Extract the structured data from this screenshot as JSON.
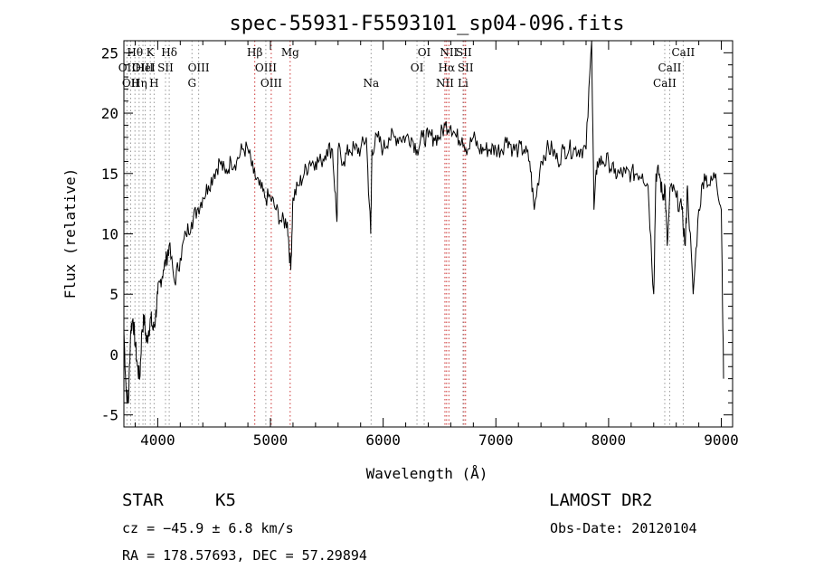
{
  "chart_data": {
    "type": "line",
    "title": "spec-55931-F5593101_sp04-096.fits",
    "xlabel": "Wavelength (Å)",
    "ylabel": "Flux (relative)",
    "xlim": [
      3700,
      9100
    ],
    "ylim": [
      -6,
      26
    ],
    "xticks": [
      4000,
      5000,
      6000,
      7000,
      8000,
      9000
    ],
    "yticks": [
      -5,
      0,
      5,
      10,
      15,
      20,
      25
    ],
    "grid": false,
    "spectrum": {
      "x": [
        3700,
        3720,
        3740,
        3760,
        3780,
        3800,
        3820,
        3840,
        3860,
        3880,
        3900,
        3920,
        3940,
        3960,
        3980,
        4000,
        4020,
        4050,
        4080,
        4100,
        4150,
        4200,
        4250,
        4300,
        4350,
        4400,
        4450,
        4500,
        4550,
        4600,
        4650,
        4700,
        4750,
        4800,
        4850,
        4900,
        4950,
        5000,
        5050,
        5100,
        5150,
        5180,
        5200,
        5250,
        5300,
        5350,
        5400,
        5450,
        5500,
        5550,
        5590,
        5600,
        5650,
        5700,
        5750,
        5800,
        5850,
        5890,
        5900,
        5950,
        6000,
        6050,
        6100,
        6150,
        6200,
        6250,
        6300,
        6350,
        6400,
        6450,
        6500,
        6550,
        6600,
        6650,
        6700,
        6750,
        6800,
        6850,
        6900,
        6950,
        7000,
        7050,
        7100,
        7150,
        7200,
        7250,
        7300,
        7340,
        7400,
        7450,
        7500,
        7550,
        7600,
        7650,
        7700,
        7750,
        7800,
        7850,
        7870,
        7900,
        7950,
        8000,
        8050,
        8100,
        8150,
        8200,
        8250,
        8300,
        8350,
        8400,
        8420,
        8450,
        8480,
        8500,
        8520,
        8550,
        8600,
        8650,
        8680,
        8700,
        8750,
        8800,
        8850,
        8900,
        8950,
        9000,
        9020
      ],
      "y": [
        2,
        -3,
        -4,
        2,
        3,
        1,
        -1,
        -2,
        2,
        3,
        1,
        2,
        3,
        2,
        3,
        5,
        6,
        7,
        8,
        9,
        6,
        8,
        10,
        11,
        12,
        13,
        14,
        15,
        16,
        15,
        16,
        16,
        17,
        17,
        15,
        14,
        13,
        13,
        12,
        11,
        11,
        7,
        13,
        14,
        15,
        16,
        16,
        16,
        17,
        17,
        11,
        17,
        16,
        17,
        17,
        17,
        18,
        10,
        17,
        18,
        17,
        18,
        18,
        18,
        18,
        18,
        17,
        18,
        18,
        18,
        18,
        19,
        19,
        18,
        18,
        17,
        18,
        17,
        17,
        17,
        17,
        17,
        18,
        17,
        17,
        17,
        16,
        12,
        16,
        17,
        17,
        16,
        17,
        17,
        17,
        17,
        17,
        26,
        12,
        16,
        16,
        16,
        15,
        15,
        15,
        15,
        15,
        15,
        14,
        5,
        15,
        15,
        13,
        14,
        9,
        14,
        13,
        12,
        9,
        14,
        5,
        12,
        15,
        14,
        15,
        12,
        -2
      ],
      "color": "#000000"
    },
    "lines": [
      {
        "label": "Hθ",
        "x": 3798,
        "row": 0,
        "color": "#999999"
      },
      {
        "label": "OII",
        "x": 3727,
        "row": 1,
        "color": "#999999"
      },
      {
        "label": "OIII",
        "x": 3869,
        "row": 1,
        "color": "#999999"
      },
      {
        "label": "HeI",
        "x": 3889,
        "row": 1,
        "color": "#999999"
      },
      {
        "label": "Hη",
        "x": 3835,
        "row": 2,
        "color": "#999999"
      },
      {
        "label": "OII",
        "x": 3760,
        "row": 2,
        "color": "#999999"
      },
      {
        "label": "K",
        "x": 3934,
        "row": 0,
        "color": "#999999"
      },
      {
        "label": "H",
        "x": 3968,
        "row": 2,
        "color": "#999999"
      },
      {
        "label": "SII",
        "x": 4069,
        "row": 1,
        "color": "#999999"
      },
      {
        "label": "Hδ",
        "x": 4102,
        "row": 0,
        "color": "#999999"
      },
      {
        "label": "G",
        "x": 4304,
        "row": 2,
        "color": "#999999"
      },
      {
        "label": "OIII",
        "x": 4363,
        "row": 1,
        "color": "#999999"
      },
      {
        "label": "Hβ",
        "x": 4861,
        "row": 0,
        "color": "#cc3333"
      },
      {
        "label": "OIII",
        "x": 4959,
        "row": 1,
        "color": "#999999"
      },
      {
        "label": "OIII",
        "x": 5007,
        "row": 2,
        "color": "#cc3333"
      },
      {
        "label": "Mg",
        "x": 5175,
        "row": 0,
        "color": "#cc3333"
      },
      {
        "label": "Na",
        "x": 5893,
        "row": 2,
        "color": "#999999"
      },
      {
        "label": "OI",
        "x": 6300,
        "row": 1,
        "color": "#999999"
      },
      {
        "label": "OI",
        "x": 6364,
        "row": 0,
        "color": "#999999"
      },
      {
        "label": "NII",
        "x": 6548,
        "row": 2,
        "color": "#cc3333"
      },
      {
        "label": "NII",
        "x": 6583,
        "row": 0,
        "color": "#cc3333"
      },
      {
        "label": "Hα",
        "x": 6563,
        "row": 1,
        "color": "#cc3333"
      },
      {
        "label": "SII",
        "x": 6716,
        "row": 0,
        "color": "#cc3333"
      },
      {
        "label": "SII",
        "x": 6731,
        "row": 1,
        "color": "#cc3333"
      },
      {
        "label": "Li",
        "x": 6708,
        "row": 2,
        "color": "#999999"
      },
      {
        "label": "CaII",
        "x": 8498,
        "row": 2,
        "color": "#999999"
      },
      {
        "label": "CaII",
        "x": 8542,
        "row": 1,
        "color": "#999999"
      },
      {
        "label": "CaII",
        "x": 8662,
        "row": 0,
        "color": "#999999"
      }
    ]
  },
  "info": {
    "class": "STAR",
    "subclass": "K5",
    "cz": "cz = −45.9 ± 6.8 km/s",
    "radec": "RA = 178.57693, DEC =  57.29894",
    "survey": "LAMOST DR2",
    "obsdate": "Obs-Date: 20120104"
  }
}
